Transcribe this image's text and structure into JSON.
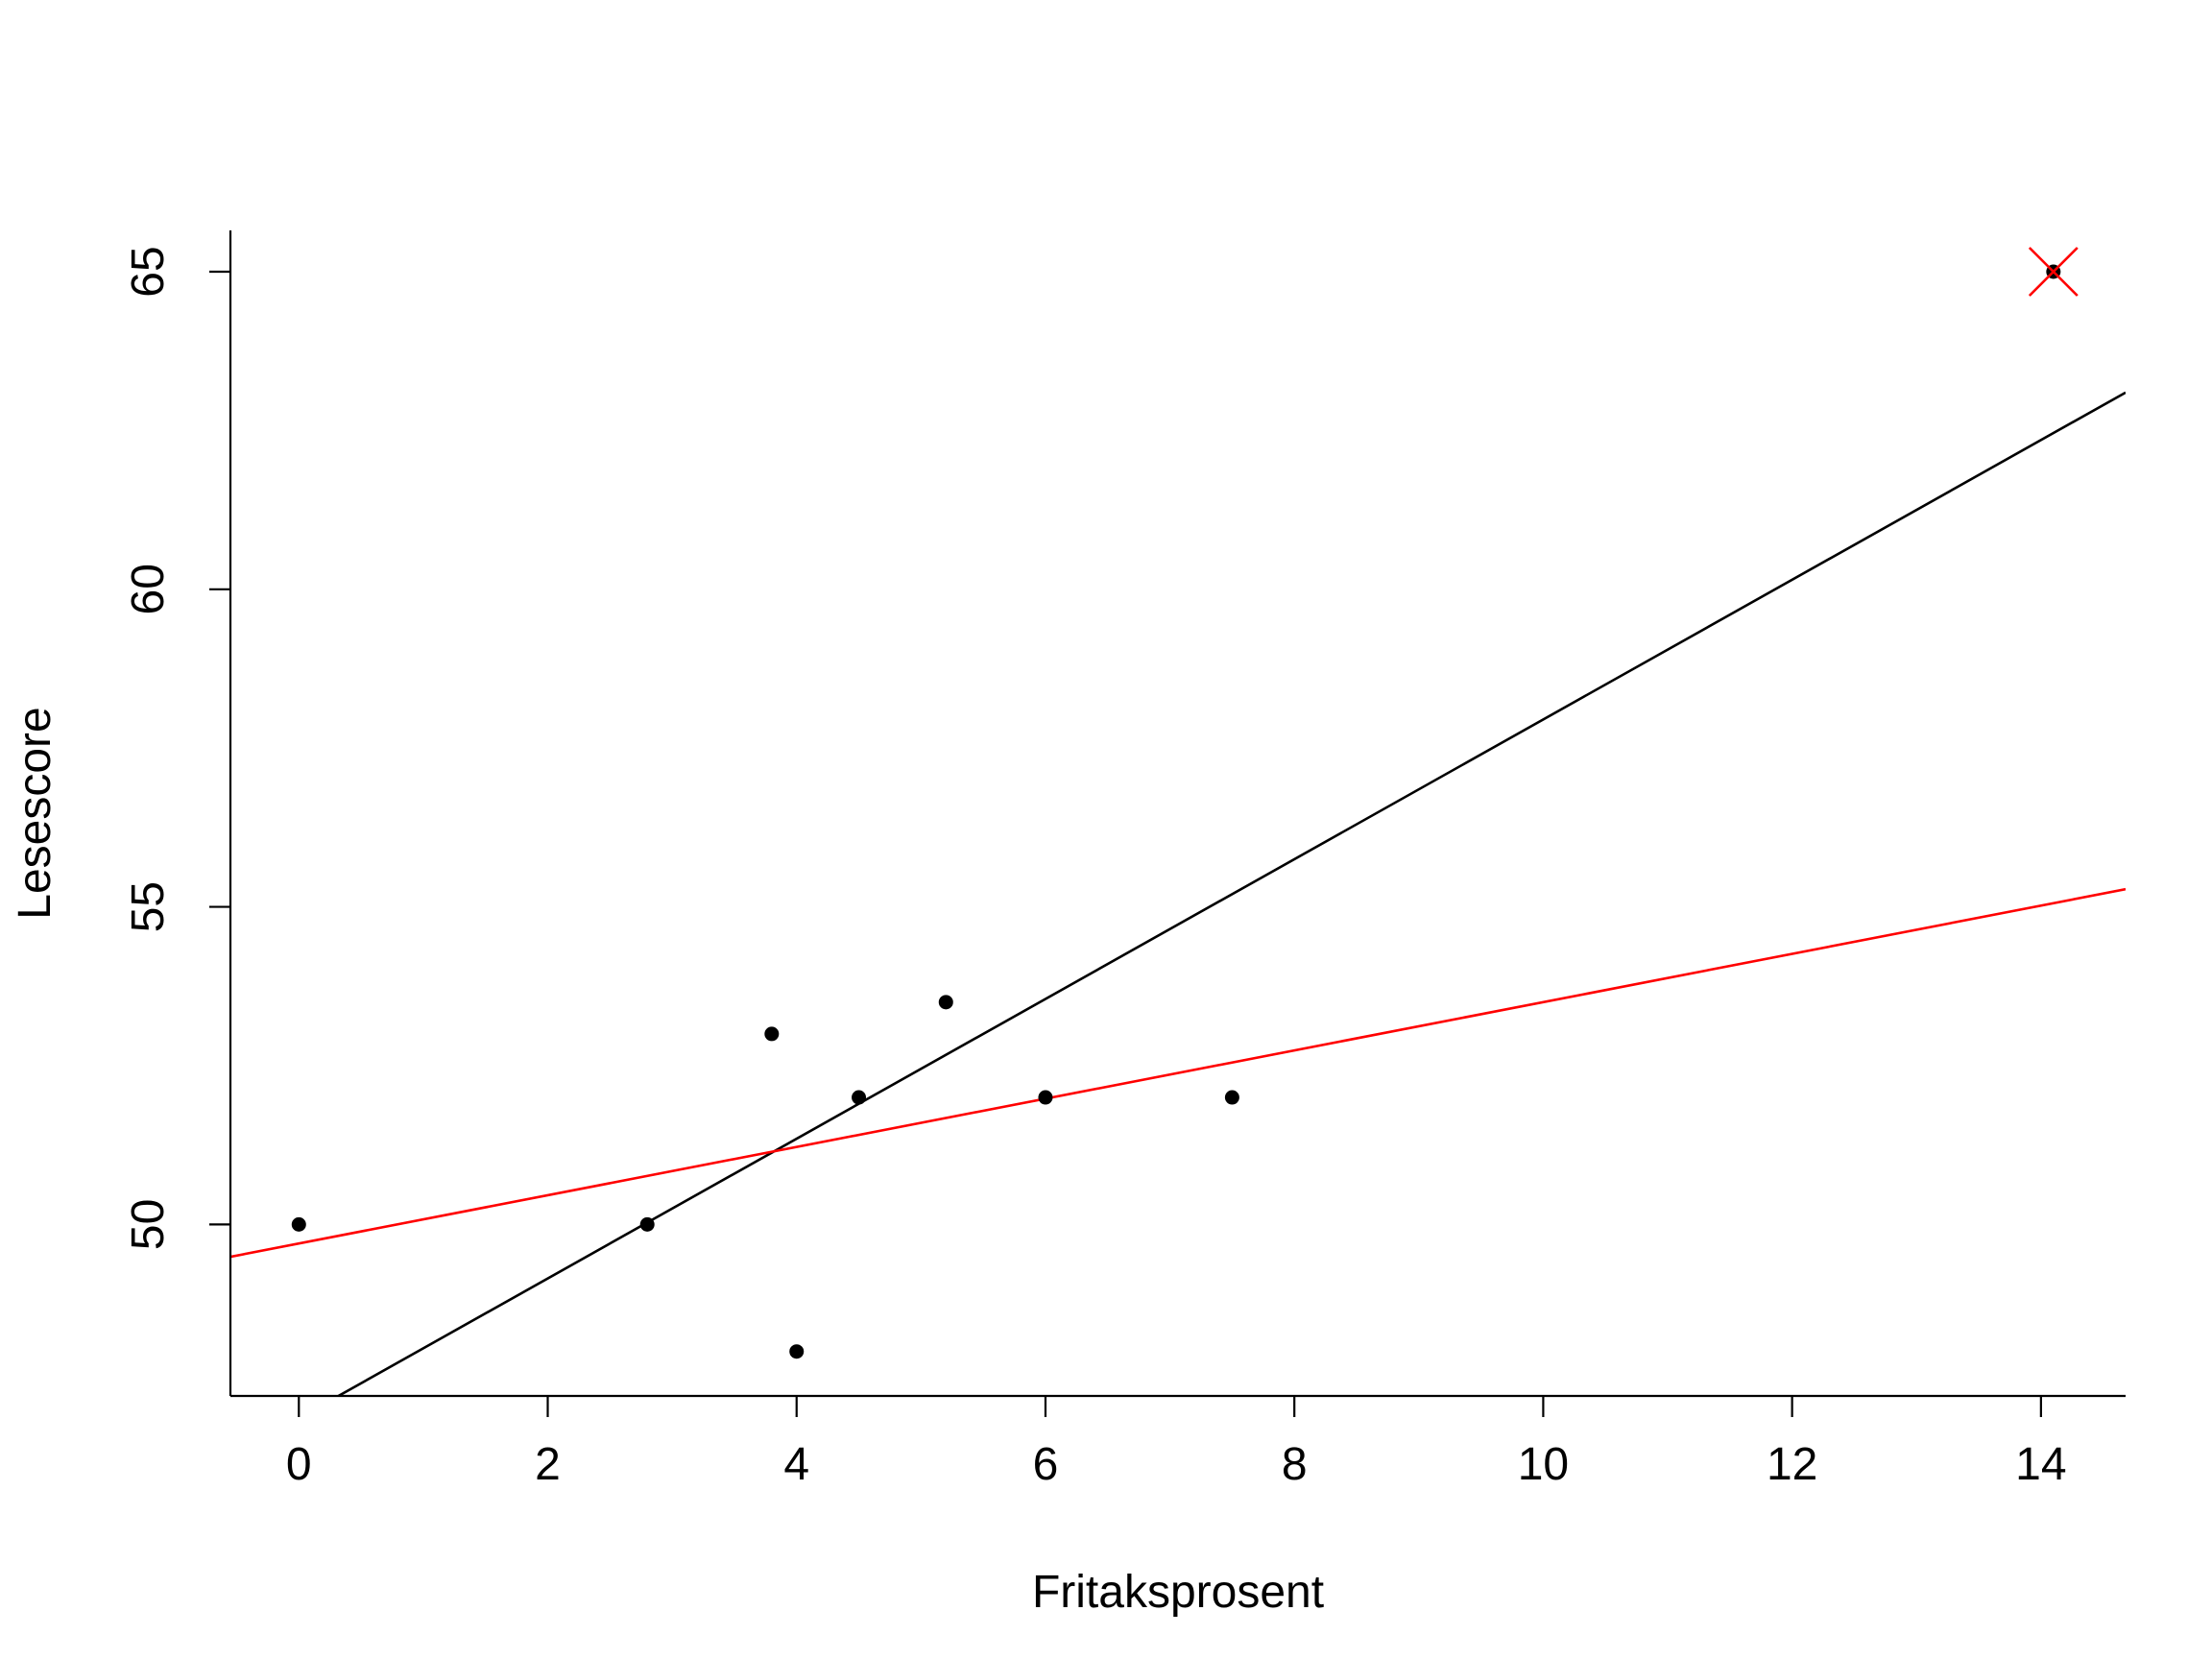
{
  "chart_data": {
    "type": "scatter",
    "xlabel": "Fritaksprosent",
    "ylabel": "Lesescore",
    "xlim": [
      -0.55,
      14.68
    ],
    "ylim": [
      47.3,
      65.65
    ],
    "x_ticks": [
      0,
      2,
      4,
      6,
      8,
      10,
      12,
      14
    ],
    "y_ticks": [
      50,
      55,
      60,
      65
    ],
    "x_tick_labels": [
      "0",
      "2",
      "4",
      "6",
      "8",
      "10",
      "12",
      "14"
    ],
    "y_tick_labels": [
      "50",
      "55",
      "60",
      "65"
    ],
    "grid": false,
    "points": [
      {
        "x": 0,
        "y": 50
      },
      {
        "x": 2.8,
        "y": 50
      },
      {
        "x": 3.8,
        "y": 53
      },
      {
        "x": 4.0,
        "y": 48
      },
      {
        "x": 4.5,
        "y": 52
      },
      {
        "x": 5.2,
        "y": 53.5
      },
      {
        "x": 6.0,
        "y": 52
      },
      {
        "x": 7.5,
        "y": 52
      },
      {
        "x": 14.1,
        "y": 65
      }
    ],
    "highlighted_point": {
      "x": 14.1,
      "y": 65,
      "marker": "x",
      "color": "#ff0000"
    },
    "lines": [
      {
        "intercept": 46.95,
        "slope": 1.1,
        "color": "#000000"
      },
      {
        "intercept": 49.7,
        "slope": 0.38,
        "color": "#ff0000"
      }
    ],
    "point_color": "#000000"
  }
}
